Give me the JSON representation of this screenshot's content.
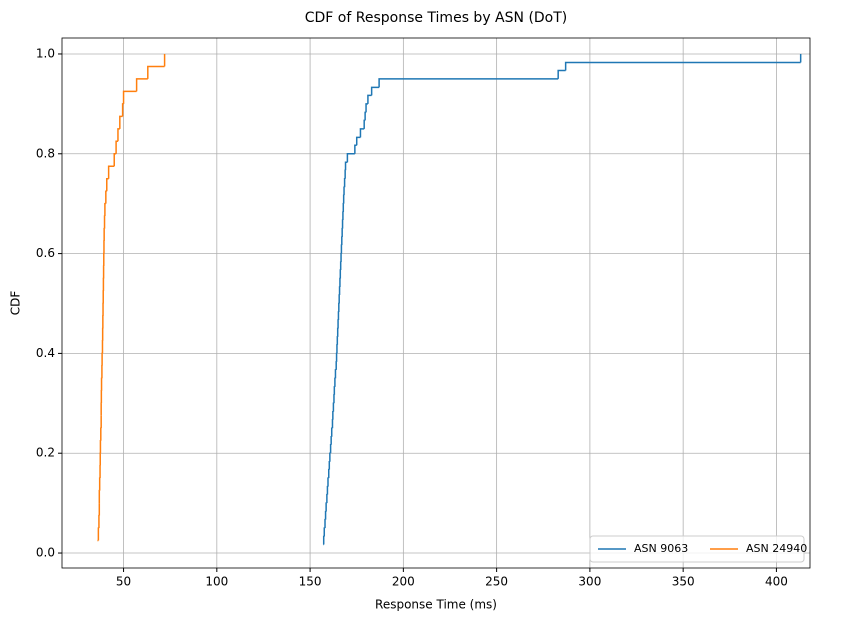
{
  "chart_data": {
    "type": "step",
    "title": "CDF of Response Times by ASN (DoT)",
    "xlabel": "Response Time (ms)",
    "ylabel": "CDF",
    "xlim": [
      17,
      418
    ],
    "ylim": [
      -0.03,
      1.032
    ],
    "xticks": [
      50,
      100,
      150,
      200,
      250,
      300,
      350,
      400
    ],
    "yticks": [
      {
        "value": 0,
        "label": "0.0"
      },
      0.2,
      0.4,
      0.6,
      0.8,
      {
        "value": 1,
        "label": "1.0"
      }
    ],
    "grid": true,
    "legend": "lower right",
    "series": [
      {
        "name": "ASN 9063",
        "color": "#1f77b4",
        "x": [
          157,
          157.3,
          157.6,
          158,
          158.3,
          158.6,
          159,
          159.3,
          159.6,
          160,
          160.3,
          160.6,
          161,
          161.3,
          161.6,
          162,
          162.2,
          162.5,
          162.8,
          163,
          163.3,
          163.6,
          164,
          164.2,
          164.4,
          164.6,
          164.8,
          165,
          165.2,
          165.4,
          165.6,
          165.8,
          166,
          166.2,
          166.4,
          166.6,
          166.8,
          167,
          167.2,
          167.4,
          167.6,
          167.8,
          168,
          168.2,
          168.5,
          168.8,
          169,
          170,
          174,
          175,
          177,
          179,
          179.5,
          180,
          181,
          183,
          187,
          283,
          287,
          413
        ],
        "values": [
          0.017,
          0.033,
          0.05,
          0.067,
          0.083,
          0.1,
          0.117,
          0.133,
          0.15,
          0.167,
          0.183,
          0.2,
          0.217,
          0.233,
          0.25,
          0.267,
          0.283,
          0.3,
          0.317,
          0.333,
          0.35,
          0.367,
          0.383,
          0.4,
          0.417,
          0.433,
          0.45,
          0.467,
          0.483,
          0.5,
          0.517,
          0.533,
          0.55,
          0.567,
          0.583,
          0.6,
          0.617,
          0.633,
          0.65,
          0.667,
          0.683,
          0.7,
          0.717,
          0.733,
          0.75,
          0.767,
          0.783,
          0.8,
          0.817,
          0.833,
          0.85,
          0.867,
          0.883,
          0.9,
          0.917,
          0.933,
          0.95,
          0.967,
          0.983,
          1
        ]
      },
      {
        "name": "ASN 24940",
        "color": "#ff7f0e",
        "x": [
          36,
          36.5,
          36.8,
          37,
          37,
          37.2,
          37.4,
          37.5,
          37.6,
          37.8,
          38,
          38,
          38.1,
          38.2,
          38.4,
          38.5,
          38.7,
          38.8,
          38.9,
          39,
          39.1,
          39.2,
          39.3,
          39.4,
          39.5,
          39.6,
          39.8,
          40,
          40.5,
          41,
          42,
          45,
          46,
          47,
          48,
          49.5,
          50,
          57,
          63,
          72
        ],
        "values": [
          0.025,
          0.05,
          0.075,
          0.1,
          0.125,
          0.15,
          0.175,
          0.2,
          0.225,
          0.25,
          0.275,
          0.3,
          0.325,
          0.35,
          0.375,
          0.4,
          0.425,
          0.45,
          0.475,
          0.5,
          0.525,
          0.55,
          0.575,
          0.6,
          0.625,
          0.65,
          0.675,
          0.7,
          0.725,
          0.75,
          0.775,
          0.8,
          0.825,
          0.85,
          0.875,
          0.9,
          0.925,
          0.95,
          0.975,
          1
        ]
      }
    ]
  }
}
